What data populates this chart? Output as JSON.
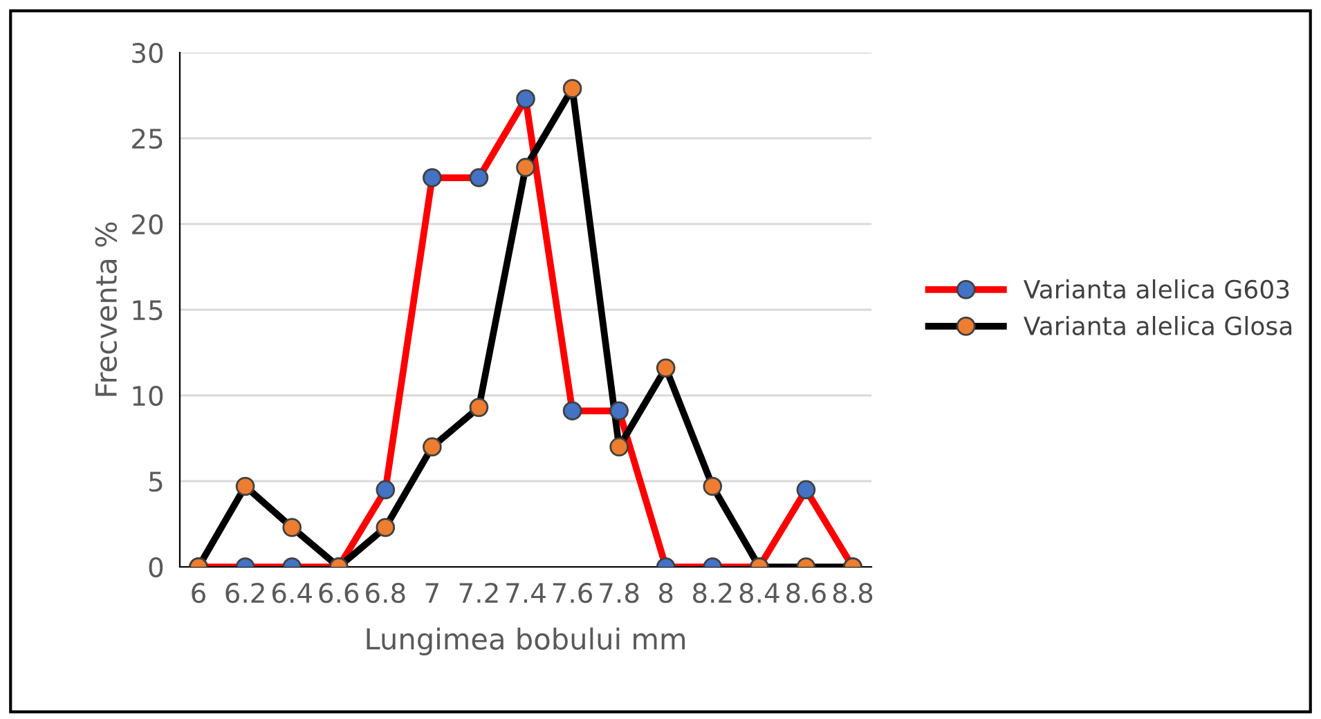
{
  "chart_data": {
    "type": "line",
    "xlabel": "Lungimea bobului mm",
    "ylabel": "Frecventa %",
    "categories": [
      "6",
      "6.2",
      "6.4",
      "6.6",
      "6.8",
      "7",
      "7.2",
      "7.4",
      "7.6",
      "7.8",
      "8",
      "8.2",
      "8.4",
      "8.6",
      "8.8"
    ],
    "series": [
      {
        "name": "Varianta alelica G603",
        "color": "#ff0000",
        "colors": [
          "#4472c4",
          "#4472c4",
          "#4472c4",
          "#4472c4",
          "#4472c4",
          "#4472c4",
          "#4472c4",
          "#4472c4",
          "#4472c4",
          "#4472c4",
          "#4472c4",
          "#4472c4",
          "#4472c4",
          "#4472c4",
          "#4472c4"
        ],
        "values": [
          0,
          0,
          0,
          0,
          4.5,
          22.7,
          22.7,
          27.3,
          9.1,
          9.1,
          0,
          0,
          0,
          4.5,
          0
        ]
      },
      {
        "name": "Varianta alelica Glosa",
        "color": "#000000",
        "colors": [
          "#ed7d31",
          "#ed7d31",
          "#ed7d31",
          "#ed7d31",
          "#ed7d31",
          "#ed7d31",
          "#ed7d31",
          "#ed7d31",
          "#ed7d31",
          "#ed7d31",
          "#ed7d31",
          "#ed7d31",
          "#ed7d31",
          "#ed7d31",
          "#ed7d31"
        ],
        "values": [
          0,
          4.7,
          2.3,
          0,
          2.3,
          7.0,
          9.3,
          23.3,
          27.9,
          7.0,
          11.6,
          4.7,
          0,
          0,
          0
        ]
      }
    ],
    "ylim": [
      0,
      30
    ],
    "yticks": [
      0,
      5,
      10,
      15,
      20,
      25,
      30
    ],
    "grid": "y",
    "legend": "right",
    "marker": "circle",
    "line_style": "solid"
  }
}
